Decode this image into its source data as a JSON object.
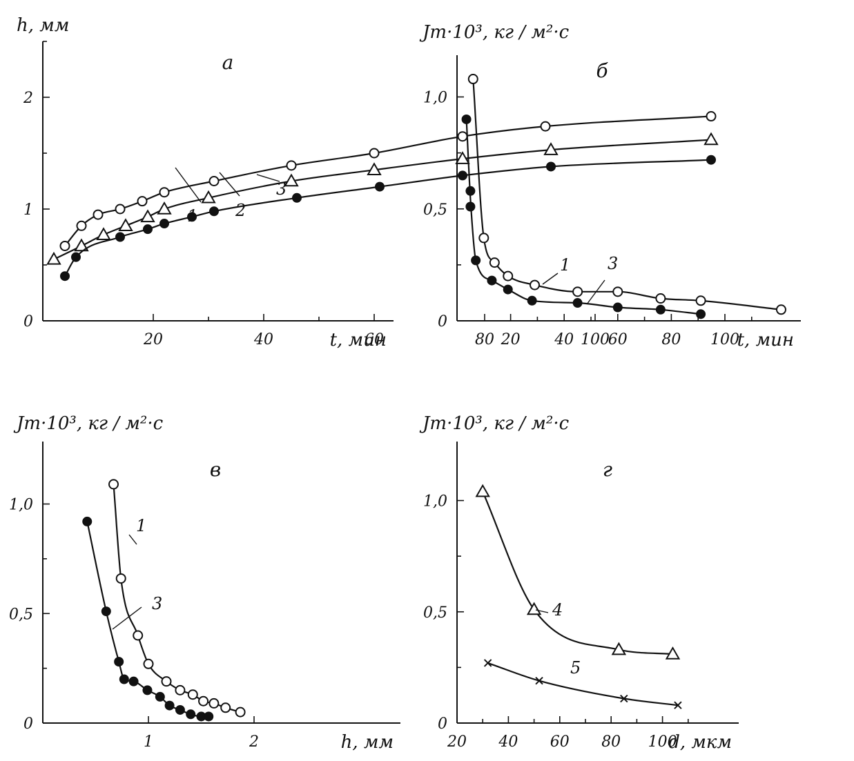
{
  "chart_data": [
    {
      "id": "a",
      "type": "line",
      "panel_letter": "а",
      "ylabel": "h, мм",
      "xlabel": "t, мин",
      "xlim": [
        0,
        120
      ],
      "ylim": [
        0,
        2.5
      ],
      "xticks": [
        20,
        40,
        60,
        80,
        100
      ],
      "xtick_labels": [
        "20",
        "40",
        "60",
        "80",
        "100"
      ],
      "yticks": [
        0,
        1,
        2
      ],
      "ytick_labels": [
        "0",
        "1",
        "2"
      ],
      "series": [
        {
          "name": "1",
          "marker": "circle-open",
          "x": [
            4,
            7,
            10,
            14,
            18,
            22,
            31,
            45,
            60,
            76,
            91,
            121
          ],
          "y": [
            0.67,
            0.85,
            0.95,
            1.0,
            1.07,
            1.15,
            1.25,
            1.39,
            1.5,
            1.65,
            1.74,
            1.83
          ]
        },
        {
          "name": "2",
          "marker": "triangle-open",
          "x": [
            2,
            7,
            11,
            15,
            19,
            22,
            30,
            45,
            60,
            76,
            92,
            121
          ],
          "y": [
            0.55,
            0.67,
            0.77,
            0.85,
            0.93,
            1.0,
            1.1,
            1.25,
            1.35,
            1.45,
            1.53,
            1.62
          ]
        },
        {
          "name": "3",
          "marker": "circle-filled",
          "x": [
            4,
            6,
            14,
            19,
            22,
            27,
            31,
            46,
            61,
            76,
            92,
            121
          ],
          "y": [
            0.4,
            0.57,
            0.75,
            0.82,
            0.87,
            0.93,
            0.98,
            1.1,
            1.2,
            1.3,
            1.38,
            1.44
          ]
        }
      ],
      "curve_labels": [
        "1",
        "2",
        "3"
      ]
    },
    {
      "id": "b",
      "type": "line",
      "panel_letter": "б",
      "ylabel": "Jm·10³, кг / м²·с",
      "xlabel": "t, мин",
      "xlim": [
        0,
        125
      ],
      "ylim": [
        0,
        1.2
      ],
      "xticks": [
        20,
        40,
        60,
        80,
        100
      ],
      "xtick_labels": [
        "20",
        "40",
        "60",
        "80",
        "100"
      ],
      "yticks": [
        0,
        0.5,
        1.0
      ],
      "ytick_labels": [
        "0",
        "0,5",
        "1,0"
      ],
      "series": [
        {
          "name": "1",
          "marker": "circle-open",
          "x": [
            6,
            10,
            14,
            19,
            29,
            45,
            60,
            76,
            91,
            121
          ],
          "y": [
            1.08,
            0.37,
            0.26,
            0.2,
            0.16,
            0.13,
            0.13,
            0.1,
            0.09,
            0.05
          ]
        },
        {
          "name": "3",
          "marker": "circle-filled",
          "x": [
            3.5,
            5,
            5,
            7,
            13,
            19,
            28,
            45,
            60,
            76,
            91
          ],
          "y": [
            0.9,
            0.58,
            0.51,
            0.27,
            0.18,
            0.14,
            0.09,
            0.08,
            0.06,
            0.05,
            0.03
          ]
        }
      ],
      "curve_labels": [
        "1",
        "3"
      ]
    },
    {
      "id": "v",
      "type": "line",
      "panel_letter": "в",
      "ylabel": "Jm·10³, кг / м²·с",
      "xlabel": "h, мм",
      "xlim": [
        0,
        2.7
      ],
      "ylim": [
        0,
        1.2
      ],
      "xticks": [
        1,
        2
      ],
      "xtick_labels": [
        "1",
        "2"
      ],
      "yticks": [
        0,
        0.5,
        1.0
      ],
      "ytick_labels": [
        "0",
        "0,5",
        "1,0"
      ],
      "series": [
        {
          "name": "1",
          "marker": "circle-open",
          "x": [
            0.67,
            0.74,
            0.9,
            1.0,
            1.17,
            1.3,
            1.42,
            1.52,
            1.62,
            1.73,
            1.87
          ],
          "y": [
            1.09,
            0.66,
            0.4,
            0.27,
            0.19,
            0.15,
            0.13,
            0.1,
            0.09,
            0.07,
            0.05
          ]
        },
        {
          "name": "3",
          "marker": "circle-filled",
          "x": [
            0.42,
            0.6,
            0.72,
            0.77,
            0.86,
            0.99,
            1.11,
            1.2,
            1.3,
            1.4,
            1.5,
            1.57
          ],
          "y": [
            0.92,
            0.51,
            0.28,
            0.2,
            0.19,
            0.15,
            0.12,
            0.08,
            0.06,
            0.04,
            0.03,
            0.03
          ]
        }
      ],
      "curve_labels": [
        "1",
        "3"
      ]
    },
    {
      "id": "g",
      "type": "line",
      "panel_letter": "г",
      "ylabel": "Jm·10³, кг / м²·с",
      "xlabel": "d, мкм",
      "xlim": [
        20,
        120
      ],
      "ylim": [
        0,
        1.2
      ],
      "xticks": [
        20,
        40,
        60,
        80,
        100
      ],
      "xtick_labels": [
        "20",
        "40",
        "60",
        "80",
        "100"
      ],
      "yticks": [
        0,
        0.5,
        1.0
      ],
      "ytick_labels": [
        "0",
        "0,5",
        "1,0"
      ],
      "series": [
        {
          "name": "4",
          "marker": "triangle-open",
          "x": [
            30,
            50,
            83,
            104
          ],
          "y": [
            1.04,
            0.51,
            0.33,
            0.31
          ]
        },
        {
          "name": "5",
          "marker": "cross",
          "x": [
            32,
            52,
            85,
            106
          ],
          "y": [
            0.27,
            0.19,
            0.11,
            0.08
          ]
        }
      ],
      "curve_labels": [
        "4",
        "5"
      ]
    }
  ]
}
